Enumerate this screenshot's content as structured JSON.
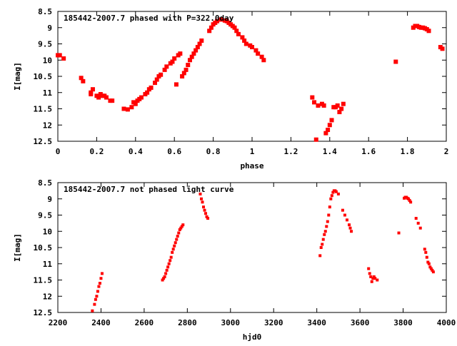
{
  "chart_data": [
    {
      "type": "scatter",
      "title": "185442-2007.7 phased with P=322.0day",
      "xlabel": "phase",
      "ylabel": "I[mag]",
      "xlim": [
        0,
        2
      ],
      "ylim": [
        12.5,
        8.5
      ],
      "y_inverted": true,
      "x_ticks": [
        "0",
        "0.2",
        "0.4",
        "0.6",
        "0.8",
        "1",
        "1.2",
        "1.4",
        "1.6",
        "1.8",
        "2"
      ],
      "x_tick_values": [
        0,
        0.2,
        0.4,
        0.6,
        0.8,
        1.0,
        1.2,
        1.4,
        1.6,
        1.8,
        2.0
      ],
      "y_ticks": [
        "8.5",
        "9",
        "9.5",
        "10",
        "10.5",
        "11",
        "11.5",
        "12",
        "12.5"
      ],
      "y_tick_values": [
        8.5,
        9,
        9.5,
        10,
        10.5,
        11,
        11.5,
        12,
        12.5
      ],
      "marker_color": "#ff0000",
      "series": [
        {
          "x": [
            0.0,
            0.01,
            0.03,
            0.12,
            0.13,
            0.17,
            0.17,
            0.18,
            0.2,
            0.21,
            0.22,
            0.23,
            0.24,
            0.25,
            0.27,
            0.28,
            0.34,
            0.36,
            0.38,
            0.39,
            0.4,
            0.41,
            0.42,
            0.43,
            0.45,
            0.46,
            0.47,
            0.48,
            0.5,
            0.51,
            0.52,
            0.53,
            0.55,
            0.56,
            0.58,
            0.59,
            0.6,
            0.61,
            0.62,
            0.63,
            0.64,
            0.65,
            0.66,
            0.67,
            0.68,
            0.69,
            0.7,
            0.71,
            0.72,
            0.73,
            0.74,
            0.78,
            0.79,
            0.8,
            0.81,
            0.82,
            0.84,
            0.86,
            0.87,
            0.88,
            0.89,
            0.9,
            0.91,
            0.92,
            0.93,
            0.95,
            0.96,
            0.97,
            0.99,
            1.0,
            1.02,
            1.03,
            1.05,
            1.06,
            1.31,
            1.32,
            1.33,
            1.34,
            1.36,
            1.37,
            1.38,
            1.39,
            1.4,
            1.41,
            1.42,
            1.43,
            1.44,
            1.45,
            1.46,
            1.47,
            1.74,
            1.83,
            1.84,
            1.85,
            1.86,
            1.87,
            1.88,
            1.89,
            1.9,
            1.91,
            1.97,
            1.98
          ],
          "y": [
            9.85,
            9.85,
            9.95,
            10.55,
            10.65,
            11.0,
            11.05,
            10.9,
            11.1,
            11.15,
            11.05,
            11.1,
            11.1,
            11.15,
            11.25,
            11.25,
            11.5,
            11.52,
            11.45,
            11.3,
            11.35,
            11.25,
            11.2,
            11.15,
            11.05,
            11.0,
            10.9,
            10.85,
            10.7,
            10.6,
            10.5,
            10.45,
            10.3,
            10.2,
            10.1,
            10.05,
            9.95,
            10.75,
            9.85,
            9.8,
            10.5,
            10.4,
            10.3,
            10.15,
            10.0,
            9.9,
            9.8,
            9.7,
            9.6,
            9.5,
            9.4,
            9.1,
            9.0,
            8.9,
            8.85,
            8.8,
            8.75,
            8.78,
            8.8,
            8.85,
            8.9,
            8.95,
            9.0,
            9.1,
            9.2,
            9.3,
            9.4,
            9.5,
            9.55,
            9.6,
            9.7,
            9.8,
            9.9,
            10.0,
            11.15,
            11.3,
            12.45,
            11.4,
            11.35,
            11.4,
            12.25,
            12.15,
            12.0,
            11.85,
            11.45,
            11.45,
            11.4,
            11.6,
            11.5,
            11.35,
            10.05,
            9.0,
            8.95,
            8.95,
            8.98,
            9.0,
            9.0,
            9.02,
            9.05,
            9.1,
            9.6,
            9.65
          ]
        }
      ]
    },
    {
      "type": "scatter",
      "title": "185442-2007.7 not phased light curve",
      "xlabel": "hjd0",
      "ylabel": "I[mag]",
      "xlim": [
        2200,
        4000
      ],
      "ylim": [
        12.5,
        8.5
      ],
      "y_inverted": true,
      "x_ticks": [
        "2200",
        "2400",
        "2600",
        "2800",
        "3000",
        "3200",
        "3400",
        "3600",
        "3800",
        "4000"
      ],
      "x_tick_values": [
        2200,
        2400,
        2600,
        2800,
        3000,
        3200,
        3400,
        3600,
        3800,
        4000
      ],
      "y_ticks": [
        "8.5",
        "9",
        "9.5",
        "10",
        "10.5",
        "11",
        "11.5",
        "12",
        "12.5"
      ],
      "y_tick_values": [
        8.5,
        9,
        9.5,
        10,
        10.5,
        11,
        11.5,
        12,
        12.5
      ],
      "marker_color": "#ff0000",
      "series": [
        {
          "x": [
            2360,
            2370,
            2375,
            2380,
            2385,
            2390,
            2395,
            2400,
            2405,
            2685,
            2690,
            2695,
            2700,
            2705,
            2710,
            2715,
            2720,
            2725,
            2730,
            2735,
            2740,
            2745,
            2750,
            2755,
            2760,
            2765,
            2770,
            2775,
            2780,
            2860,
            2865,
            2870,
            2875,
            2880,
            2885,
            2890,
            2895,
            3415,
            3420,
            3425,
            3430,
            3435,
            3440,
            3445,
            3450,
            3455,
            3460,
            3465,
            3470,
            3475,
            3480,
            3485,
            3490,
            3500,
            3520,
            3530,
            3540,
            3550,
            3555,
            3560,
            3640,
            3645,
            3650,
            3655,
            3660,
            3665,
            3670,
            3680,
            3780,
            3805,
            3810,
            3815,
            3820,
            3825,
            3830,
            3835,
            3860,
            3870,
            3880,
            3900,
            3905,
            3910,
            3915,
            3920,
            3925,
            3930,
            3935,
            3940
          ],
          "y": [
            12.45,
            12.25,
            12.1,
            12.0,
            11.85,
            11.7,
            11.6,
            11.45,
            11.3,
            11.5,
            11.45,
            11.4,
            11.3,
            11.2,
            11.1,
            11.0,
            10.9,
            10.8,
            10.65,
            10.55,
            10.45,
            10.35,
            10.25,
            10.15,
            10.05,
            9.95,
            9.9,
            9.85,
            9.8,
            8.85,
            9.0,
            9.1,
            9.25,
            9.35,
            9.45,
            9.55,
            9.6,
            10.75,
            10.5,
            10.4,
            10.25,
            10.1,
            10.0,
            9.85,
            9.7,
            9.5,
            9.25,
            9.0,
            8.9,
            8.8,
            8.75,
            8.75,
            8.78,
            8.85,
            9.35,
            9.5,
            9.65,
            9.8,
            9.9,
            10.0,
            11.15,
            11.3,
            11.4,
            11.55,
            11.45,
            11.4,
            11.45,
            11.5,
            10.05,
            8.98,
            8.95,
            8.95,
            8.98,
            9.0,
            9.05,
            9.1,
            9.6,
            9.75,
            9.9,
            10.55,
            10.65,
            10.8,
            10.95,
            11.0,
            11.1,
            11.15,
            11.2,
            11.25
          ]
        }
      ]
    }
  ]
}
